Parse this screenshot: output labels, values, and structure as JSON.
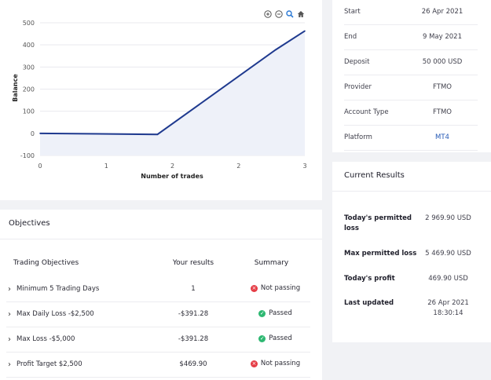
{
  "chart": {
    "ylabel": "Balance",
    "xlabel": "Number of trades",
    "toolbar": [
      "zoom-in",
      "zoom-out",
      "magnify",
      "home"
    ]
  },
  "chart_data": {
    "type": "area",
    "ylabel": "Balance",
    "xlabel": "Number of trades",
    "x_tick_labels": [
      "0",
      "1",
      "2",
      "2",
      "3"
    ],
    "y_ticks": [
      500,
      400,
      300,
      200,
      100,
      0,
      -100
    ],
    "ylim": [
      -100,
      500
    ],
    "xlim": [
      0,
      3
    ],
    "grid": true,
    "series": [
      {
        "x": [
          0,
          1.33,
          2.67,
          3.0
        ],
        "values": [
          0,
          -5,
          378,
          463
        ]
      }
    ],
    "colors": {
      "line": "#1f3a8f",
      "fill": "#eef1f9"
    }
  },
  "objectives": {
    "title": "Objectives",
    "headers": {
      "name": "Trading Objectives",
      "result": "Your results",
      "summary": "Summary"
    },
    "rows": [
      {
        "name": "Minimum 5 Trading Days",
        "result": "1",
        "summary": "Not passing",
        "status": "fail"
      },
      {
        "name": "Max Daily Loss -$2,500",
        "result": "-$391.28",
        "summary": "Passed",
        "status": "pass"
      },
      {
        "name": "Max Loss -$5,000",
        "result": "-$391.28",
        "summary": "Passed",
        "status": "pass"
      },
      {
        "name": "Profit Target $2,500",
        "result": "$469.90",
        "summary": "Not passing",
        "status": "fail"
      }
    ]
  },
  "details": [
    {
      "label": "Start",
      "value": "26 Apr 2021"
    },
    {
      "label": "End",
      "value": "9 May 2021"
    },
    {
      "label": "Deposit",
      "value": "50 000 USD"
    },
    {
      "label": "Provider",
      "value": "FTMO"
    },
    {
      "label": "Account Type",
      "value": "FTMO"
    },
    {
      "label": "Platform",
      "value": "MT4"
    }
  ],
  "results": {
    "title": "Current Results",
    "rows": [
      {
        "label": "Today's permitted loss",
        "value": "2 969.90 USD"
      },
      {
        "label": "Max permitted loss",
        "value": "5 469.90 USD"
      },
      {
        "label": "Today's profit",
        "value": "469.90 USD"
      },
      {
        "label": "Last updated",
        "value": "26 Apr 2021 18:30:14"
      }
    ]
  },
  "colors": {
    "pass": "#2eb872",
    "fail": "#e53d46",
    "link": "#2458b5"
  }
}
